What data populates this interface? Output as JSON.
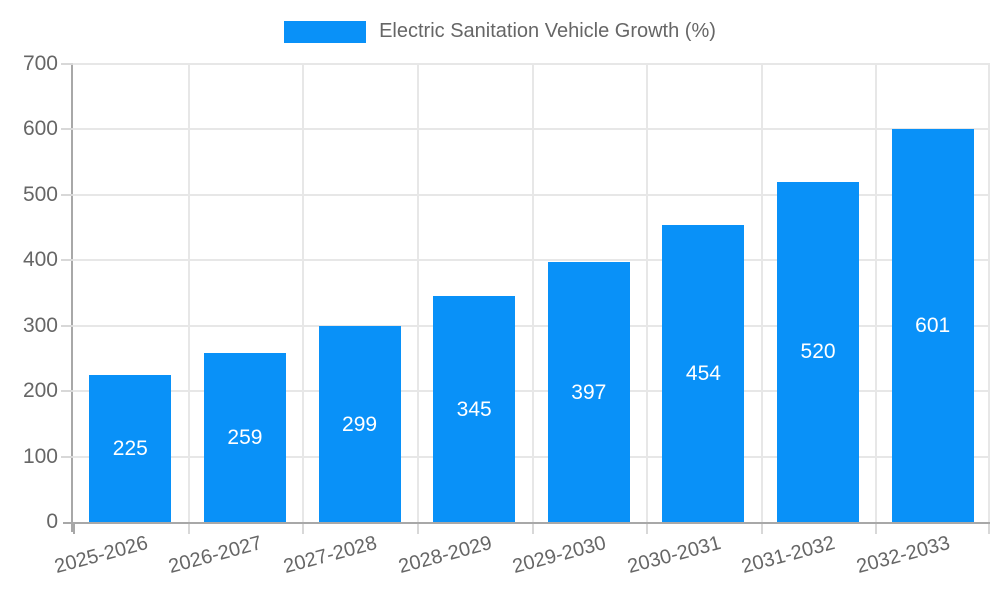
{
  "legend": {
    "label": "Electric Sanitation Vehicle Growth (%)"
  },
  "chart_data": {
    "type": "bar",
    "title": "Electric Sanitation Vehicle Growth (%)",
    "categories": [
      "2025-2026",
      "2026-2027",
      "2027-2028",
      "2028-2029",
      "2029-2030",
      "2030-2031",
      "2031-2032",
      "2032-2033"
    ],
    "values": [
      225,
      259,
      299,
      345,
      397,
      454,
      520,
      601
    ],
    "value_labels": [
      "225",
      "259",
      "299",
      "345",
      "397",
      "454",
      "520",
      "601"
    ],
    "xlabel": "",
    "ylabel": "",
    "ylim": [
      0,
      700
    ],
    "y_tick_step": 100,
    "y_tick_labels": [
      "0",
      "100",
      "200",
      "300",
      "400",
      "500",
      "600",
      "700"
    ],
    "grid": true,
    "legend_position": "top-center",
    "colors": {
      "bar": "#0991F8",
      "value_label": "#FFFFFF",
      "axis_line": "#A8A8A8",
      "gridline": "#E7E7E7",
      "tick": "#D8D8D8",
      "label_text": "#666666"
    }
  }
}
